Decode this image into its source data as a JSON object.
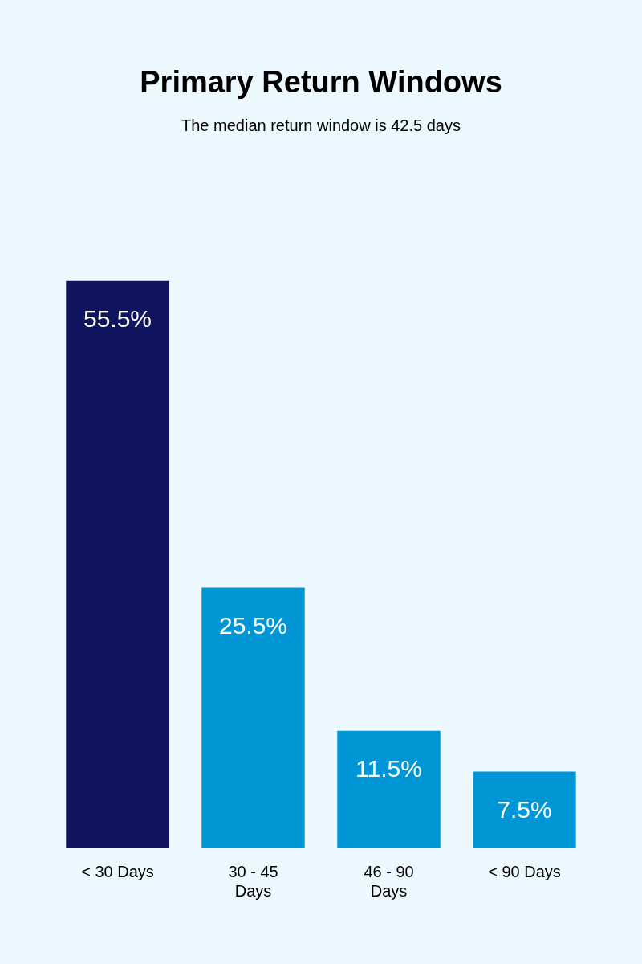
{
  "chart_data": {
    "type": "bar",
    "title": "Primary Return Windows",
    "subtitle": "The median return window is 42.5 days",
    "categories": [
      "< 30 Days",
      "30 - 45 Days",
      "46 - 90 Days",
      "< 90 Days"
    ],
    "values": [
      55.5,
      25.5,
      11.5,
      7.5
    ],
    "colors": [
      "#10135e",
      "#0096d6",
      "#0096d6",
      "#0096d6"
    ],
    "value_labels": [
      "55.5%",
      "25.5%",
      "11.5%",
      "7.5%"
    ],
    "ylim": [
      0,
      55.5
    ],
    "grid": false,
    "legend": false,
    "tick_labels": "x"
  }
}
